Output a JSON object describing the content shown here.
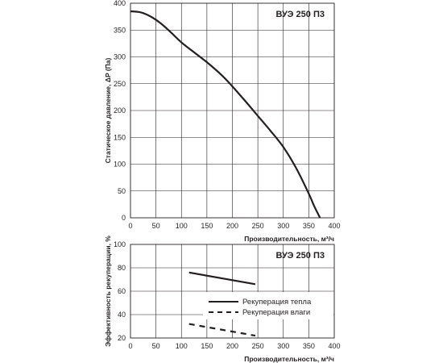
{
  "chart_data": [
    {
      "type": "line",
      "title": "ВУЭ  250 П3",
      "xlabel": "Производительность, м³/ч",
      "ylabel": "Статическое давление, ΔP (Па)",
      "xlim": [
        0,
        400
      ],
      "ylim": [
        0,
        400
      ],
      "xticks": [
        "0",
        "50",
        "100",
        "150",
        "200",
        "250",
        "300",
        "350",
        "400"
      ],
      "yticks": [
        "0",
        "50",
        "100",
        "150",
        "200",
        "250",
        "300",
        "350",
        "400"
      ],
      "grid": true,
      "series": [
        {
          "color": "#231f20",
          "style": "solid",
          "x": [
            0,
            20,
            40,
            60,
            80,
            100,
            120,
            150,
            180,
            200,
            225,
            250,
            275,
            300,
            325,
            350,
            360,
            372
          ],
          "y": [
            385,
            383,
            375,
            362,
            345,
            327,
            312,
            290,
            265,
            245,
            218,
            190,
            162,
            132,
            93,
            45,
            23,
            0
          ]
        }
      ]
    },
    {
      "type": "line",
      "title": "ВУЭ  250 П3",
      "xlabel": "Производительность, м³/ч",
      "ylabel": "Эффективность рекуперации, %",
      "xlim": [
        0,
        400
      ],
      "ylim": [
        20,
        100
      ],
      "xticks": [
        "0",
        "50",
        "100",
        "150",
        "200",
        "250",
        "300",
        "350",
        "400"
      ],
      "yticks": [
        "20",
        "40",
        "60",
        "80",
        "100"
      ],
      "grid": true,
      "legend_position": "right",
      "series": [
        {
          "name": "Рекуперация тепла",
          "color": "#231f20",
          "style": "solid",
          "x": [
            115,
            245
          ],
          "y": [
            76,
            66
          ]
        },
        {
          "name": "Рекуперация влаги",
          "color": "#231f20",
          "style": "dashed",
          "x": [
            115,
            245
          ],
          "y": [
            32,
            22
          ]
        }
      ]
    }
  ]
}
